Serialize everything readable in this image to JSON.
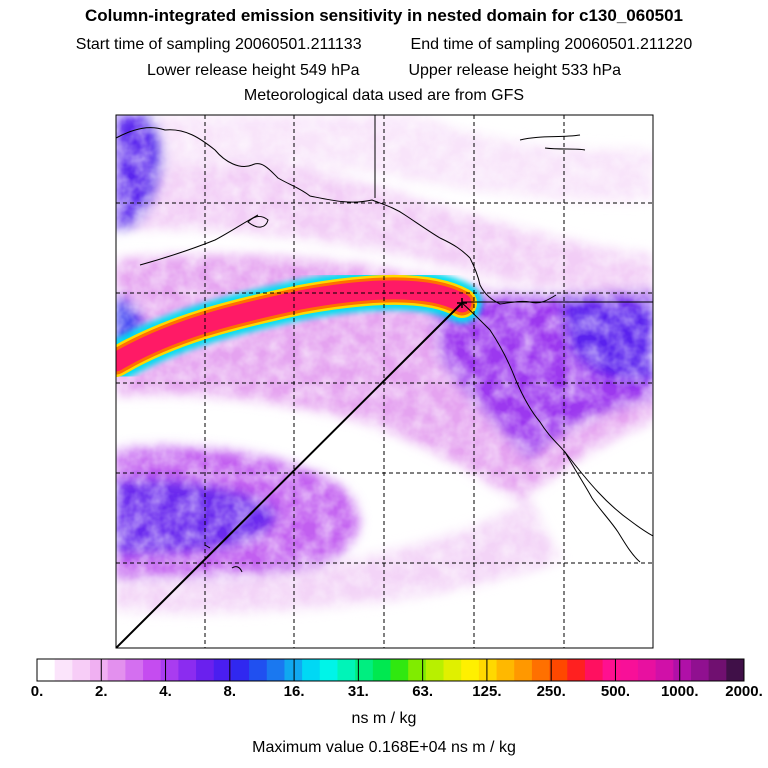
{
  "chart_data": {
    "type": "heatmap",
    "title": "Column-integrated emission sensitivity in nested domain for c130_060501",
    "start_time_label": "Start time of sampling",
    "start_time": "20060501.211133",
    "end_time_label": "End time of sampling",
    "end_time": "20060501.211220",
    "lower_height_label": "Lower release height",
    "lower_height": "549 hPa",
    "upper_height_label": "Upper release height",
    "upper_height": "533 hPa",
    "met_data": "Meteorological data used are from GFS",
    "colorbar": {
      "tick_labels": [
        "0.",
        "2.",
        "4.",
        "8.",
        "16.",
        "31.",
        "63.",
        "125.",
        "250.",
        "500.",
        "1000.",
        "2000."
      ],
      "colors": [
        "#ffffff",
        "#fbe4fb",
        "#f7cdf7",
        "#f0b0f2",
        "#e390ee",
        "#d46ff0",
        "#c54cf0",
        "#a93cf0",
        "#8b2cf0",
        "#6a20ee",
        "#4a1ef0",
        "#3028f0",
        "#2050f0",
        "#1a78f0",
        "#10a8f0",
        "#00d8f4",
        "#00f4e8",
        "#00f4b8",
        "#00ee80",
        "#00e850",
        "#30e810",
        "#80ec00",
        "#b8f000",
        "#e0f000",
        "#fff000",
        "#ffd800",
        "#ffb800",
        "#ff9800",
        "#ff7000",
        "#ff4800",
        "#ff2020",
        "#ff1060",
        "#ff1090",
        "#f81098",
        "#e810a0",
        "#d010a8",
        "#b010a8",
        "#901090",
        "#701070",
        "#401048"
      ]
    },
    "units": "ns m / kg",
    "max_value_label": "Maximum value",
    "max_value": "0.168E+04",
    "max_value_units": "ns m / kg"
  },
  "palette": {
    "background": "#ffffff",
    "plume_core": "#ff1a66",
    "plume_edge": "#ffd800",
    "field_light": "#f6d8f8",
    "field_mid": "#d77af2",
    "field_dark": "#7a1ef0",
    "coast": "#000000",
    "grid": "#000000"
  }
}
